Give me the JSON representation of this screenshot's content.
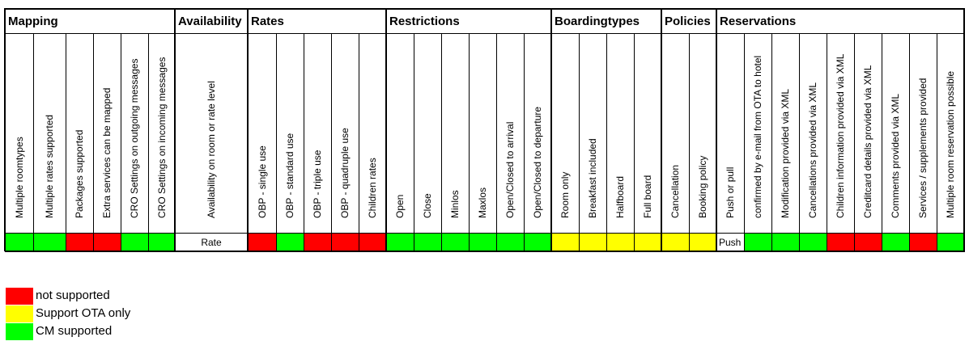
{
  "colors": {
    "red": "#ff0000",
    "yellow": "#ffff00",
    "green": "#00ff00",
    "white": "#ffffff"
  },
  "groups": [
    {
      "title": "Mapping"
    },
    {
      "title": "Availability"
    },
    {
      "title": "Rates"
    },
    {
      "title": "Restrictions"
    },
    {
      "title": "Boardingtypes"
    },
    {
      "title": "Policies"
    },
    {
      "title": "Reservations"
    }
  ],
  "columns": [
    {
      "label": "Multiple roomtypes",
      "status": "green",
      "group": 0
    },
    {
      "label": "Multiple rates supported",
      "status": "green",
      "group": 0
    },
    {
      "label": "Packages supported",
      "status": "red",
      "group": 0
    },
    {
      "label": "Extra services can be mapped",
      "status": "red",
      "group": 0
    },
    {
      "label": "CRO Settings on outgoing messages",
      "status": "green",
      "group": 0
    },
    {
      "label": "CRO Settings on incoming messages",
      "status": "green",
      "group": 0
    },
    {
      "label": "Availability on room or rate level",
      "status": "white",
      "text": "Rate",
      "group": 1
    },
    {
      "label": "OBP - single use",
      "status": "red",
      "group": 2
    },
    {
      "label": "OBP - standard use",
      "status": "green",
      "group": 2
    },
    {
      "label": "OBP - triple use",
      "status": "red",
      "group": 2
    },
    {
      "label": "OBP - quadruple use",
      "status": "red",
      "group": 2
    },
    {
      "label": "Children rates",
      "status": "red",
      "group": 2
    },
    {
      "label": "Open",
      "status": "green",
      "group": 3
    },
    {
      "label": "Close",
      "status": "green",
      "group": 3
    },
    {
      "label": "Minlos",
      "status": "green",
      "group": 3
    },
    {
      "label": "Maxlos",
      "status": "green",
      "group": 3
    },
    {
      "label": "Open/Closed to arrival",
      "status": "green",
      "group": 3
    },
    {
      "label": "Open/Closed to departure",
      "status": "green",
      "group": 3
    },
    {
      "label": "Room only",
      "status": "yellow",
      "group": 4
    },
    {
      "label": "Breakfast included",
      "status": "yellow",
      "group": 4
    },
    {
      "label": "Halfboard",
      "status": "yellow",
      "group": 4
    },
    {
      "label": "Full board",
      "status": "yellow",
      "group": 4
    },
    {
      "label": "Cancellation",
      "status": "yellow",
      "group": 5
    },
    {
      "label": "Booking policy",
      "status": "yellow",
      "group": 5
    },
    {
      "label": "Push or pull",
      "status": "white",
      "text": "Push",
      "group": 6
    },
    {
      "label": "confirmed by e-mail from OTA to hotel",
      "status": "green",
      "group": 6
    },
    {
      "label": "Modification provided via XML",
      "status": "green",
      "group": 6
    },
    {
      "label": "Cancellations provided via XML",
      "status": "green",
      "group": 6
    },
    {
      "label": "Children information provided via XML",
      "status": "red",
      "group": 6
    },
    {
      "label": "Creditcard details provided via XML",
      "status": "red",
      "group": 6
    },
    {
      "label": "Comments provided via XML",
      "status": "green",
      "group": 6
    },
    {
      "label": "Services / supplements provided",
      "status": "red",
      "group": 6
    },
    {
      "label": "Multiple room reservation possible",
      "status": "green",
      "group": 6
    }
  ],
  "legend": [
    {
      "color": "red",
      "label": "not supported"
    },
    {
      "color": "yellow",
      "label": "Support OTA only"
    },
    {
      "color": "green",
      "label": "CM supported"
    }
  ]
}
